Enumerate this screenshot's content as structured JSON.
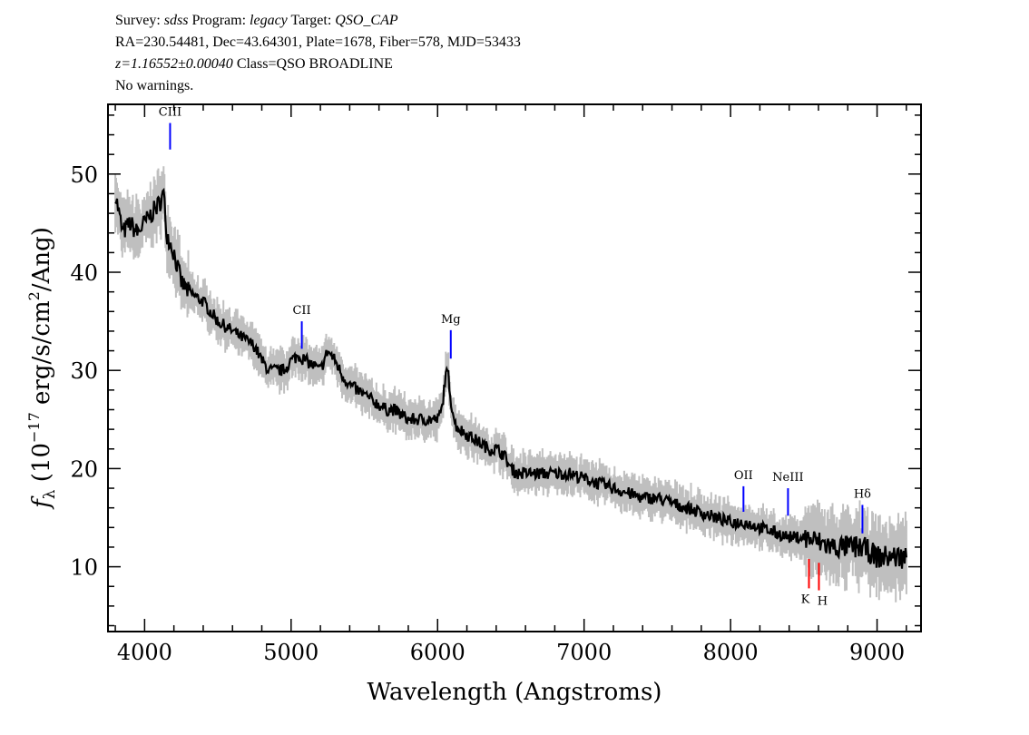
{
  "header": {
    "line1": {
      "survey_label": "Survey:",
      "survey": "sdss",
      "program_label": "Program:",
      "program": "legacy",
      "target_label": "Target:",
      "target": "QSO_CAP"
    },
    "line2": "RA=230.54481, Dec=43.64301, Plate=1678, Fiber=578, MJD=53433",
    "line3": {
      "redshift": "z=1.16552±0.00040",
      "class": "Class=QSO BROADLINE"
    },
    "line4": "No warnings."
  },
  "chart_data": {
    "type": "line",
    "title": "",
    "xlabel": "Wavelength (Angstroms)",
    "ylabel": "f_λ (10^-17 erg/s/cm^2/Ang)",
    "ylabel_parts": {
      "f": "f",
      "sub": "λ",
      "pre": " (10",
      "exp1": "−17",
      "mid": " erg/s/cm",
      "exp2": "2",
      "post": "/Ang)"
    },
    "xlim": [
      3750,
      9300
    ],
    "ylim": [
      3.4,
      57.1
    ],
    "xticks": [
      4000,
      5000,
      6000,
      7000,
      8000,
      9000
    ],
    "xtick_labels": [
      "4000",
      "5000",
      "6000",
      "7000",
      "8000",
      "9000"
    ],
    "yticks": [
      10,
      20,
      30,
      40,
      50
    ],
    "ytick_labels": [
      "10",
      "20",
      "30",
      "40",
      "50"
    ],
    "grid": false,
    "colors": {
      "flux": "#000000",
      "noise": "#bfbfbf",
      "emission": "#0000ff",
      "absorption": "#ff0000"
    },
    "series": [
      {
        "x": [
          3800,
          3850,
          3900,
          3950,
          4000,
          4050,
          4100,
          4130,
          4150,
          4200,
          4250,
          4300,
          4350,
          4400,
          4450,
          4500,
          4550,
          4600,
          4650,
          4700,
          4750,
          4800,
          4850,
          4900,
          4950,
          5000,
          5050,
          5100,
          5150,
          5200,
          5250,
          5300,
          5350,
          5400,
          5450,
          5500,
          5550,
          5600,
          5650,
          5700,
          5750,
          5800,
          5850,
          5900,
          5950,
          6000,
          6030,
          6050,
          6070,
          6090,
          6120,
          6150,
          6200,
          6250,
          6300,
          6350,
          6400,
          6450,
          6500,
          6550,
          6600,
          6700,
          6800,
          6900,
          7000,
          7100,
          7200,
          7300,
          7400,
          7500,
          7600,
          7700,
          7800,
          7900,
          8000,
          8100,
          8200,
          8300,
          8400,
          8500,
          8600,
          8700,
          8800,
          8900,
          9000,
          9100,
          9200
        ],
        "y": [
          48,
          44,
          45,
          44,
          45,
          46,
          47,
          48,
          44,
          42,
          39,
          38,
          37.5,
          37,
          36,
          35,
          34.5,
          34,
          33.5,
          33,
          32.5,
          31,
          30,
          30,
          30,
          31,
          31.5,
          31,
          30.5,
          30,
          32,
          31,
          29.5,
          28.5,
          28,
          27.5,
          27,
          26.5,
          26,
          26,
          25.5,
          25,
          25,
          25,
          25,
          25,
          26,
          29,
          30,
          27,
          24.5,
          24,
          23.5,
          23,
          22.5,
          22,
          22,
          21.5,
          20,
          19.5,
          19.5,
          19.5,
          19.5,
          19.5,
          19,
          18.5,
          18,
          17.5,
          17,
          17,
          16.5,
          16,
          15.5,
          15,
          14.5,
          14.5,
          14,
          13.5,
          13,
          13,
          12.5,
          12,
          12,
          12,
          11,
          11,
          11
        ]
      }
    ],
    "line_markers": [
      {
        "label": "CIII",
        "wavelength": 4174,
        "color": "emission",
        "flux_range": [
          52.5,
          55.2
        ],
        "position": "above"
      },
      {
        "label": "CII",
        "wavelength": 5073,
        "color": "emission",
        "flux_range": [
          32.2,
          35.0
        ],
        "position": "above"
      },
      {
        "label": "Mg",
        "wavelength": 6090,
        "color": "emission",
        "flux_range": [
          31.2,
          34.1
        ],
        "position": "above"
      },
      {
        "label": "OII",
        "wavelength": 8088,
        "color": "emission",
        "flux_range": [
          15.6,
          18.2
        ],
        "position": "above"
      },
      {
        "label": "NeIII",
        "wavelength": 8392,
        "color": "emission",
        "flux_range": [
          15.2,
          18.0
        ],
        "position": "above"
      },
      {
        "label": "Hδ",
        "wavelength": 8900,
        "color": "emission",
        "flux_range": [
          13.4,
          16.3
        ],
        "position": "above"
      },
      {
        "label": "K",
        "wavelength": 8535,
        "color": "absorption",
        "flux_range": [
          7.8,
          10.8
        ],
        "position": "below"
      },
      {
        "label": "H",
        "wavelength": 8603,
        "color": "absorption",
        "flux_range": [
          7.6,
          10.4
        ],
        "position": "below"
      }
    ]
  }
}
